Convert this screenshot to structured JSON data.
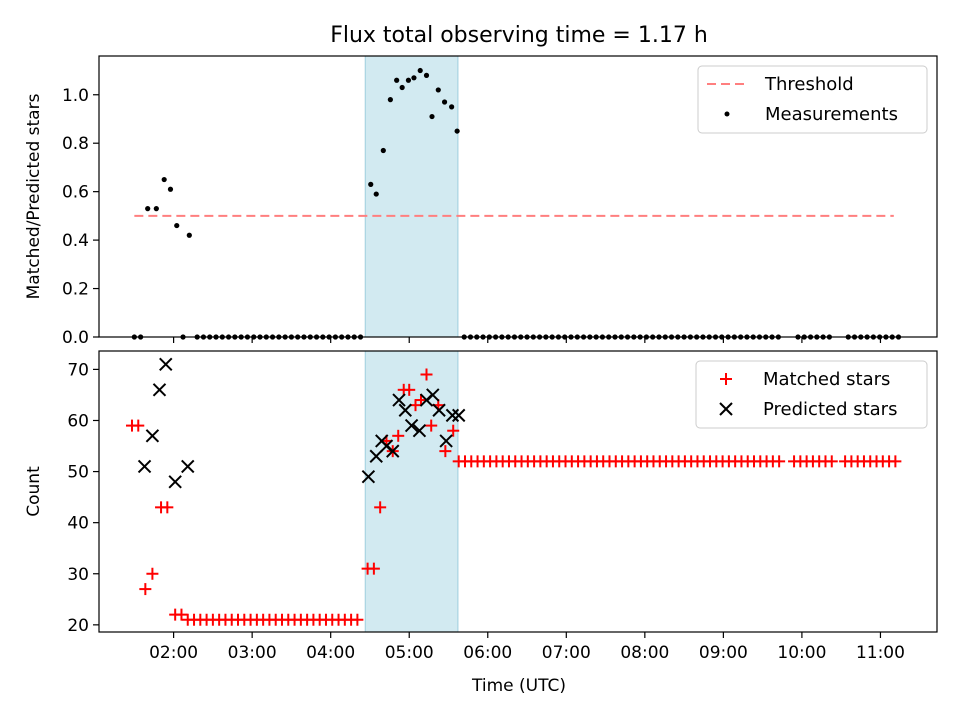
{
  "title": "Flux total observing time = 1.17 h",
  "x_axis": {
    "label": "Time (UTC)",
    "tick_values": [
      2,
      3,
      4,
      5,
      6,
      7,
      8,
      9,
      10,
      11
    ],
    "tick_labels": [
      "02:00",
      "03:00",
      "04:00",
      "05:00",
      "06:00",
      "07:00",
      "08:00",
      "09:00",
      "10:00",
      "11:00"
    ],
    "range": [
      1.05,
      11.72
    ]
  },
  "highlight_band": {
    "x_start": 4.44,
    "x_end": 5.62,
    "color": "#add8e6"
  },
  "chart_data": [
    {
      "type": "scatter",
      "ylabel": "Matched/Predicted stars",
      "ylim": [
        0,
        1.16
      ],
      "yticks": [
        0.0,
        0.2,
        0.4,
        0.6,
        0.8,
        1.0
      ],
      "ytick_labels": [
        "0.0",
        "0.2",
        "0.4",
        "0.6",
        "0.8",
        "1.0"
      ],
      "legend_position": "top-right",
      "threshold": {
        "name": "Threshold",
        "value": 0.5,
        "x_range": [
          1.5,
          11.17
        ],
        "color": "#ff7f7f",
        "style": "dashed"
      },
      "series": [
        {
          "name": "Measurements",
          "color": "#000000",
          "marker": "dot",
          "points": [
            [
              1.5,
              0
            ],
            [
              1.58,
              0
            ],
            [
              1.67,
              0.53
            ],
            [
              1.78,
              0.53
            ],
            [
              1.88,
              0.65
            ],
            [
              1.96,
              0.61
            ],
            [
              2.04,
              0.46
            ],
            [
              2.12,
              0
            ],
            [
              2.2,
              0.42
            ],
            [
              2.3,
              0
            ],
            [
              2.38,
              0
            ],
            [
              2.46,
              0
            ],
            [
              2.54,
              0
            ],
            [
              2.62,
              0
            ],
            [
              2.7,
              0
            ],
            [
              2.78,
              0
            ],
            [
              2.86,
              0
            ],
            [
              2.94,
              0
            ],
            [
              3.02,
              0
            ],
            [
              3.1,
              0
            ],
            [
              3.18,
              0
            ],
            [
              3.26,
              0
            ],
            [
              3.34,
              0
            ],
            [
              3.42,
              0
            ],
            [
              3.5,
              0
            ],
            [
              3.58,
              0
            ],
            [
              3.66,
              0
            ],
            [
              3.74,
              0
            ],
            [
              3.82,
              0
            ],
            [
              3.9,
              0
            ],
            [
              3.98,
              0
            ],
            [
              4.06,
              0
            ],
            [
              4.14,
              0
            ],
            [
              4.22,
              0
            ],
            [
              4.3,
              0
            ],
            [
              4.38,
              0
            ],
            [
              4.51,
              0.63
            ],
            [
              4.58,
              0.59
            ],
            [
              4.67,
              0.77
            ],
            [
              4.76,
              0.98
            ],
            [
              4.84,
              1.06
            ],
            [
              4.91,
              1.03
            ],
            [
              4.99,
              1.06
            ],
            [
              5.06,
              1.07
            ],
            [
              5.14,
              1.1
            ],
            [
              5.22,
              1.08
            ],
            [
              5.29,
              0.91
            ],
            [
              5.37,
              1.02
            ],
            [
              5.45,
              0.97
            ],
            [
              5.54,
              0.95
            ],
            [
              5.61,
              0.85
            ],
            [
              5.7,
              0
            ],
            [
              5.78,
              0
            ],
            [
              5.86,
              0
            ],
            [
              5.94,
              0
            ],
            [
              6.02,
              0
            ],
            [
              6.1,
              0
            ],
            [
              6.18,
              0
            ],
            [
              6.26,
              0
            ],
            [
              6.34,
              0
            ],
            [
              6.42,
              0
            ],
            [
              6.5,
              0
            ],
            [
              6.58,
              0
            ],
            [
              6.66,
              0
            ],
            [
              6.74,
              0
            ],
            [
              6.82,
              0
            ],
            [
              6.9,
              0
            ],
            [
              6.98,
              0
            ],
            [
              7.06,
              0
            ],
            [
              7.14,
              0
            ],
            [
              7.22,
              0
            ],
            [
              7.3,
              0
            ],
            [
              7.38,
              0
            ],
            [
              7.46,
              0
            ],
            [
              7.54,
              0
            ],
            [
              7.62,
              0
            ],
            [
              7.7,
              0
            ],
            [
              7.78,
              0
            ],
            [
              7.86,
              0
            ],
            [
              7.94,
              0
            ],
            [
              8.02,
              0
            ],
            [
              8.1,
              0
            ],
            [
              8.18,
              0
            ],
            [
              8.26,
              0
            ],
            [
              8.34,
              0
            ],
            [
              8.42,
              0
            ],
            [
              8.5,
              0
            ],
            [
              8.58,
              0
            ],
            [
              8.66,
              0
            ],
            [
              8.74,
              0
            ],
            [
              8.82,
              0
            ],
            [
              8.9,
              0
            ],
            [
              8.98,
              0
            ],
            [
              9.06,
              0
            ],
            [
              9.14,
              0
            ],
            [
              9.22,
              0
            ],
            [
              9.3,
              0
            ],
            [
              9.38,
              0
            ],
            [
              9.46,
              0
            ],
            [
              9.54,
              0
            ],
            [
              9.62,
              0
            ],
            [
              9.7,
              0
            ],
            [
              9.95,
              0
            ],
            [
              10.03,
              0
            ],
            [
              10.11,
              0
            ],
            [
              10.19,
              0
            ],
            [
              10.27,
              0
            ],
            [
              10.35,
              0
            ],
            [
              10.59,
              0
            ],
            [
              10.67,
              0
            ],
            [
              10.75,
              0
            ],
            [
              10.83,
              0
            ],
            [
              10.91,
              0
            ],
            [
              10.99,
              0
            ],
            [
              11.07,
              0
            ],
            [
              11.15,
              0
            ],
            [
              11.23,
              0
            ]
          ]
        }
      ]
    },
    {
      "type": "scatter",
      "ylabel": "Count",
      "ylim": [
        18.6,
        73.6
      ],
      "yticks": [
        20,
        30,
        40,
        50,
        60,
        70
      ],
      "ytick_labels": [
        "20",
        "30",
        "40",
        "50",
        "60",
        "70"
      ],
      "legend_position": "top-right",
      "series": [
        {
          "name": "Matched stars",
          "color": "#ff0000",
          "marker": "plus",
          "points": [
            [
              1.47,
              59
            ],
            [
              1.55,
              59
            ],
            [
              1.64,
              27
            ],
            [
              1.73,
              30
            ],
            [
              1.84,
              43
            ],
            [
              1.92,
              43
            ],
            [
              2.02,
              22
            ],
            [
              2.1,
              22
            ],
            [
              2.18,
              21
            ],
            [
              2.26,
              21
            ],
            [
              2.34,
              21
            ],
            [
              2.42,
              21
            ],
            [
              2.5,
              21
            ],
            [
              2.58,
              21
            ],
            [
              2.66,
              21
            ],
            [
              2.74,
              21
            ],
            [
              2.82,
              21
            ],
            [
              2.9,
              21
            ],
            [
              2.98,
              21
            ],
            [
              3.06,
              21
            ],
            [
              3.14,
              21
            ],
            [
              3.22,
              21
            ],
            [
              3.3,
              21
            ],
            [
              3.38,
              21
            ],
            [
              3.46,
              21
            ],
            [
              3.54,
              21
            ],
            [
              3.62,
              21
            ],
            [
              3.7,
              21
            ],
            [
              3.78,
              21
            ],
            [
              3.86,
              21
            ],
            [
              3.94,
              21
            ],
            [
              4.02,
              21
            ],
            [
              4.1,
              21
            ],
            [
              4.18,
              21
            ],
            [
              4.26,
              21
            ],
            [
              4.34,
              21
            ],
            [
              4.47,
              31
            ],
            [
              4.55,
              31
            ],
            [
              4.63,
              43
            ],
            [
              4.71,
              56
            ],
            [
              4.79,
              54
            ],
            [
              4.86,
              57
            ],
            [
              4.93,
              66
            ],
            [
              5.0,
              66
            ],
            [
              5.08,
              63
            ],
            [
              5.15,
              64
            ],
            [
              5.22,
              69
            ],
            [
              5.28,
              59
            ],
            [
              5.37,
              63
            ],
            [
              5.46,
              54
            ],
            [
              5.56,
              58
            ],
            [
              5.63,
              52
            ],
            [
              5.71,
              52
            ],
            [
              5.79,
              52
            ],
            [
              5.87,
              52
            ],
            [
              5.95,
              52
            ],
            [
              6.03,
              52
            ],
            [
              6.11,
              52
            ],
            [
              6.19,
              52
            ],
            [
              6.27,
              52
            ],
            [
              6.35,
              52
            ],
            [
              6.43,
              52
            ],
            [
              6.51,
              52
            ],
            [
              6.59,
              52
            ],
            [
              6.67,
              52
            ],
            [
              6.75,
              52
            ],
            [
              6.83,
              52
            ],
            [
              6.91,
              52
            ],
            [
              6.99,
              52
            ],
            [
              7.07,
              52
            ],
            [
              7.15,
              52
            ],
            [
              7.23,
              52
            ],
            [
              7.31,
              52
            ],
            [
              7.39,
              52
            ],
            [
              7.47,
              52
            ],
            [
              7.55,
              52
            ],
            [
              7.63,
              52
            ],
            [
              7.71,
              52
            ],
            [
              7.79,
              52
            ],
            [
              7.87,
              52
            ],
            [
              7.95,
              52
            ],
            [
              8.03,
              52
            ],
            [
              8.11,
              52
            ],
            [
              8.19,
              52
            ],
            [
              8.27,
              52
            ],
            [
              8.35,
              52
            ],
            [
              8.43,
              52
            ],
            [
              8.51,
              52
            ],
            [
              8.59,
              52
            ],
            [
              8.67,
              52
            ],
            [
              8.75,
              52
            ],
            [
              8.83,
              52
            ],
            [
              8.91,
              52
            ],
            [
              8.99,
              52
            ],
            [
              9.07,
              52
            ],
            [
              9.15,
              52
            ],
            [
              9.23,
              52
            ],
            [
              9.31,
              52
            ],
            [
              9.39,
              52
            ],
            [
              9.47,
              52
            ],
            [
              9.55,
              52
            ],
            [
              9.63,
              52
            ],
            [
              9.71,
              52
            ],
            [
              9.9,
              52
            ],
            [
              9.98,
              52
            ],
            [
              10.06,
              52
            ],
            [
              10.14,
              52
            ],
            [
              10.22,
              52
            ],
            [
              10.3,
              52
            ],
            [
              10.38,
              52
            ],
            [
              10.55,
              52
            ],
            [
              10.63,
              52
            ],
            [
              10.71,
              52
            ],
            [
              10.79,
              52
            ],
            [
              10.87,
              52
            ],
            [
              10.95,
              52
            ],
            [
              11.03,
              52
            ],
            [
              11.11,
              52
            ],
            [
              11.19,
              52
            ]
          ]
        },
        {
          "name": "Predicted stars",
          "color": "#000000",
          "marker": "x",
          "points": [
            [
              1.63,
              51
            ],
            [
              1.73,
              57
            ],
            [
              1.82,
              66
            ],
            [
              1.9,
              71
            ],
            [
              2.02,
              48
            ],
            [
              2.18,
              51
            ],
            [
              4.48,
              49
            ],
            [
              4.58,
              53
            ],
            [
              4.65,
              56
            ],
            [
              4.71,
              55
            ],
            [
              4.79,
              54
            ],
            [
              4.87,
              64
            ],
            [
              4.95,
              62
            ],
            [
              5.03,
              59
            ],
            [
              5.13,
              58
            ],
            [
              5.22,
              64
            ],
            [
              5.3,
              65
            ],
            [
              5.38,
              62
            ],
            [
              5.47,
              56
            ],
            [
              5.55,
              61
            ],
            [
              5.63,
              61
            ]
          ]
        }
      ]
    }
  ]
}
